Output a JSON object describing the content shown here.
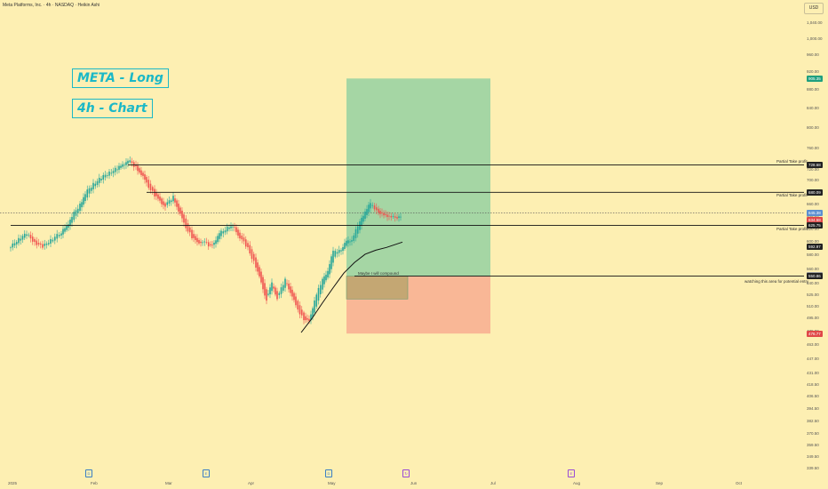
{
  "header": {
    "title": "Meta Platforms, Inc. · 4h · NASDAQ · Heikin Ashi",
    "currency": "USD"
  },
  "annotations": {
    "title": "META - Long",
    "timeframe": "4h - Chart",
    "compound_note": "Maybe I will compound",
    "tp1": "Partial Take profit",
    "tp2": "Partial Take profit",
    "tp3": "Partial Take profit",
    "entry_note": "watching this area for potential entry"
  },
  "price_axis": {
    "ticks": [
      "1,040.00",
      "1,000.00",
      "960.00",
      "920.00",
      "880.00",
      "840.00",
      "800.00",
      "760.00",
      "720.00",
      "700.00",
      "680.00",
      "660.00",
      "640.00",
      "620.00",
      "600.00",
      "580.00",
      "560.00",
      "540.00",
      "525.00",
      "510.00",
      "495.00",
      "479.00",
      "463.00",
      "447.00",
      "431.00",
      "418.50",
      "406.50",
      "394.50",
      "382.50",
      "370.50",
      "359.50",
      "349.50",
      "339.50"
    ],
    "badges": [
      {
        "label": "905.35",
        "value": 905.35,
        "color": "#1f9f7f"
      },
      {
        "label": "728.68",
        "value": 728.68,
        "color": "#222222"
      },
      {
        "label": "680.09",
        "value": 680.09,
        "color": "#222222"
      },
      {
        "label": "645.38",
        "value": 645.38,
        "color": "#5b8fd0"
      },
      {
        "label": "634.58",
        "value": 634.58,
        "color": "#e04848"
      },
      {
        "label": "625.75",
        "value": 625.75,
        "color": "#222222"
      },
      {
        "label": "592.97",
        "value": 592.97,
        "color": "#222222"
      },
      {
        "label": "551.97",
        "value": 551.97,
        "color": "#9e9e9e"
      },
      {
        "label": "550.86",
        "value": 550.86,
        "color": "#222222"
      },
      {
        "label": "476.77",
        "value": 476.77,
        "color": "#e04848"
      }
    ]
  },
  "time_axis": {
    "labels": [
      "2025",
      "Feb",
      "Mar",
      "Apr",
      "May",
      "Jun",
      "Jul",
      "Aug",
      "Sep",
      "Oct"
    ]
  },
  "events": [
    {
      "icon": "dividend-icon",
      "glyph": "D",
      "color": "#3b7fc4"
    },
    {
      "icon": "earnings-icon",
      "glyph": "E",
      "color": "#3b7fc4"
    },
    {
      "icon": "dividend-icon",
      "glyph": "D",
      "color": "#3b7fc4"
    },
    {
      "icon": "split-icon",
      "glyph": "↻",
      "color": "#9a4ad6"
    },
    {
      "icon": "earnings-icon",
      "glyph": "E",
      "color": "#9a4ad6"
    }
  ],
  "chart_data": {
    "type": "candlestick",
    "symbol": "META",
    "exchange": "NASDAQ",
    "interval": "4h",
    "style": "Heikin Ashi",
    "y_scale": "log",
    "ylim": [
      335,
      1050
    ],
    "colors": {
      "up": "#25a69a",
      "down": "#ef5350",
      "background": "#fdefb2"
    },
    "close_series": [
      [
        "2025-01-01",
        592
      ],
      [
        "2025-01-04",
        606
      ],
      [
        "2025-01-07",
        612
      ],
      [
        "2025-01-10",
        600
      ],
      [
        "2025-01-13",
        592
      ],
      [
        "2025-01-16",
        604
      ],
      [
        "2025-01-20",
        614
      ],
      [
        "2025-01-22",
        625
      ],
      [
        "2025-01-24",
        640
      ],
      [
        "2025-01-27",
        660
      ],
      [
        "2025-01-29",
        678
      ],
      [
        "2025-02-01",
        695
      ],
      [
        "2025-02-04",
        705
      ],
      [
        "2025-02-07",
        715
      ],
      [
        "2025-02-10",
        722
      ],
      [
        "2025-02-12",
        728
      ],
      [
        "2025-02-14",
        738
      ],
      [
        "2025-02-17",
        724
      ],
      [
        "2025-02-19",
        712
      ],
      [
        "2025-02-21",
        695
      ],
      [
        "2025-02-24",
        675
      ],
      [
        "2025-02-26",
        664
      ],
      [
        "2025-02-28",
        658
      ],
      [
        "2025-03-03",
        672
      ],
      [
        "2025-03-05",
        650
      ],
      [
        "2025-03-07",
        628
      ],
      [
        "2025-03-10",
        608
      ],
      [
        "2025-03-12",
        598
      ],
      [
        "2025-03-14",
        602
      ],
      [
        "2025-03-17",
        593
      ],
      [
        "2025-03-19",
        605
      ],
      [
        "2025-03-21",
        615
      ],
      [
        "2025-03-24",
        625
      ],
      [
        "2025-03-26",
        620
      ],
      [
        "2025-03-28",
        608
      ],
      [
        "2025-03-31",
        590
      ],
      [
        "2025-04-03",
        565
      ],
      [
        "2025-04-05",
        540
      ],
      [
        "2025-04-07",
        520
      ],
      [
        "2025-04-09",
        540
      ],
      [
        "2025-04-11",
        522
      ],
      [
        "2025-04-14",
        545
      ],
      [
        "2025-04-16",
        530
      ],
      [
        "2025-04-18",
        510
      ],
      [
        "2025-04-21",
        495
      ],
      [
        "2025-04-23",
        490
      ],
      [
        "2025-04-25",
        520
      ],
      [
        "2025-04-28",
        545
      ],
      [
        "2025-04-30",
        560
      ],
      [
        "2025-05-02",
        585
      ],
      [
        "2025-05-05",
        590
      ],
      [
        "2025-05-07",
        600
      ],
      [
        "2025-05-09",
        605
      ],
      [
        "2025-05-12",
        630
      ],
      [
        "2025-05-14",
        650
      ],
      [
        "2025-05-16",
        660
      ],
      [
        "2025-05-19",
        648
      ],
      [
        "2025-05-21",
        640
      ],
      [
        "2025-05-23",
        642
      ],
      [
        "2025-05-26",
        635
      ],
      [
        "2025-05-28",
        645
      ]
    ],
    "moving_average": [
      [
        "2025-04-20",
        478
      ],
      [
        "2025-04-24",
        495
      ],
      [
        "2025-04-28",
        515
      ],
      [
        "2025-05-02",
        535
      ],
      [
        "2025-05-06",
        555
      ],
      [
        "2025-05-10",
        570
      ],
      [
        "2025-05-14",
        582
      ],
      [
        "2025-05-18",
        588
      ],
      [
        "2025-05-22",
        592
      ],
      [
        "2025-05-28",
        600
      ]
    ],
    "levels": [
      {
        "name": "tp3",
        "price": 728.68,
        "x_start": "2025-02-14"
      },
      {
        "name": "tp2",
        "price": 680.09,
        "x_start": "2025-02-21"
      },
      {
        "name": "tp1",
        "price": 625.75,
        "x_start": "2025-01-01"
      },
      {
        "name": "entry",
        "price": 550.86,
        "x_start": "2025-05-10"
      }
    ],
    "position": {
      "side": "long",
      "x_start": "2025-05-07",
      "x_end": "2025-06-30",
      "entry": 550.86,
      "target": 905.35,
      "stop": 476.77
    },
    "entry_zone": {
      "x_start": "2025-05-07",
      "x_end": "2025-05-30",
      "top": 550.86,
      "bottom": 520
    },
    "current_price": 645.38
  }
}
